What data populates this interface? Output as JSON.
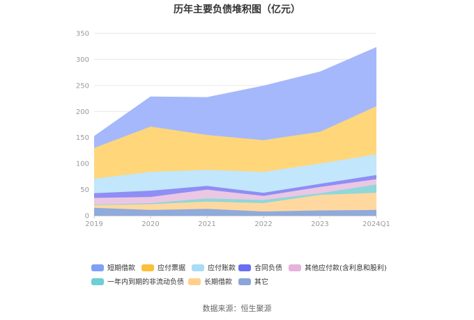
{
  "chart_data": {
    "type": "area",
    "title": "历年主要负债堆积图（亿元）",
    "x": [
      "2019",
      "2020",
      "2021",
      "2022",
      "2023",
      "2024Q1"
    ],
    "ylim": [
      0,
      350
    ],
    "yticks": [
      0,
      50,
      100,
      150,
      200,
      250,
      300,
      350
    ],
    "stacked": true,
    "grid": true,
    "legend_position": "bottom",
    "series": [
      {
        "name": "其它",
        "color": "#8faadc",
        "values": [
          15,
          11,
          13,
          8,
          10,
          11
        ]
      },
      {
        "name": "长期借款",
        "color": "#ffd8a0",
        "values": [
          5,
          11,
          14,
          16,
          30,
          33
        ]
      },
      {
        "name": "一年内到期的非流动负债",
        "color": "#8ed8da",
        "values": [
          1,
          2,
          6,
          6,
          3,
          16
        ]
      },
      {
        "name": "其他应付款(含利息和股利)",
        "color": "#ebc7e3",
        "values": [
          13,
          12,
          17,
          8,
          12,
          10
        ]
      },
      {
        "name": "合同负债",
        "color": "#8e8ef5",
        "values": [
          9,
          12,
          7,
          6,
          6,
          8
        ]
      },
      {
        "name": "应付账款",
        "color": "#c2e6fb",
        "values": [
          28,
          36,
          31,
          40,
          39,
          40
        ]
      },
      {
        "name": "应付票据",
        "color": "#ffd77a",
        "values": [
          59,
          87,
          67,
          61,
          61,
          92
        ]
      },
      {
        "name": "短期借款",
        "color": "#a5b8fb",
        "values": [
          22,
          57,
          72,
          104,
          115,
          113
        ]
      }
    ],
    "legend_order": [
      "短期借款",
      "应付票据",
      "应付账款",
      "合同负债",
      "其他应付款(含利息和股利)",
      "一年内到期的非流动负债",
      "长期借款",
      "其它"
    ],
    "legend_swatch_colors": {
      "短期借款": "#7fa0f7",
      "应付票据": "#fbbf3a",
      "应付账款": "#a9dcf7",
      "合同负债": "#6b6ef0",
      "其他应付款(含利息和股利)": "#e6b2dc",
      "一年内到期的非流动负债": "#6ccfd1",
      "长期借款": "#ffd08c",
      "其它": "#8aa6d8"
    }
  },
  "source": "数据来源：恒生聚源"
}
